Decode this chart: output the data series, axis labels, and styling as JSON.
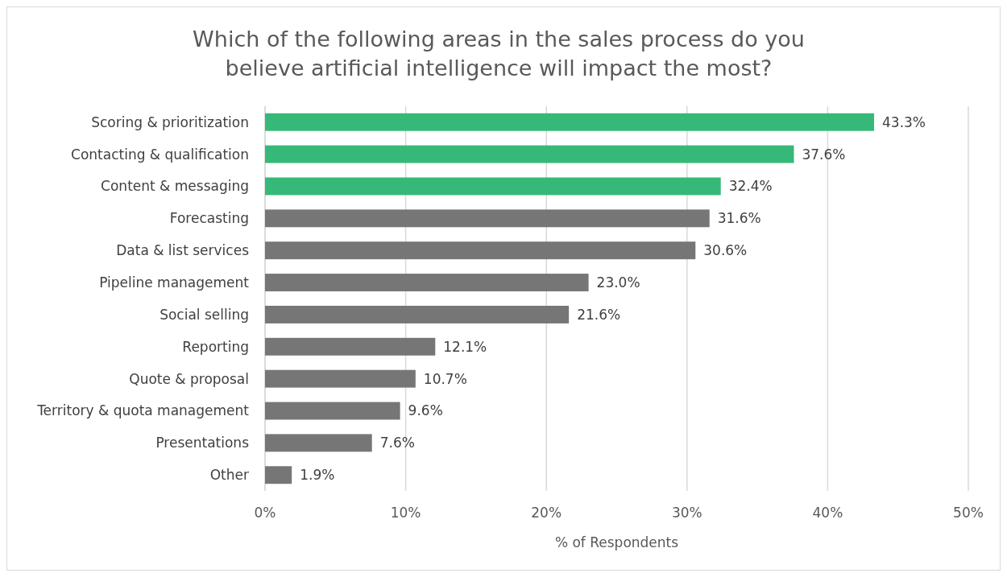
{
  "chart_data": {
    "type": "bar",
    "orientation": "horizontal",
    "title": "Which of the following areas in the sales process do you believe artificial intelligence will impact the most?",
    "xlabel": "% of Respondents",
    "categories": [
      "Scoring & prioritization",
      "Contacting & qualification",
      "Content & messaging",
      "Forecasting",
      "Data & list services",
      "Pipeline management",
      "Social selling",
      "Reporting",
      "Quote & proposal",
      "Territory & quota management",
      "Presentations",
      "Other"
    ],
    "values": [
      43.3,
      37.6,
      32.4,
      31.6,
      30.6,
      23.0,
      21.6,
      12.1,
      10.7,
      9.6,
      7.6,
      1.9
    ],
    "colors": [
      "#36b978",
      "#36b978",
      "#36b978",
      "#767676",
      "#767676",
      "#767676",
      "#767676",
      "#767676",
      "#767676",
      "#767676",
      "#767676",
      "#767676"
    ],
    "value_labels": [
      "43.3%",
      "37.6%",
      "32.4%",
      "31.6%",
      "30.6%",
      "23.0%",
      "21.6%",
      "12.1%",
      "10.7%",
      "9.6%",
      "7.6%",
      "1.9%"
    ],
    "xlim": [
      0,
      50
    ],
    "xticks": [
      {
        "value": 0,
        "label": "0%"
      },
      {
        "value": 10,
        "label": "10%"
      },
      {
        "value": 20,
        "label": "20%"
      },
      {
        "value": 30,
        "label": "30%"
      },
      {
        "value": 40,
        "label": "40%"
      },
      {
        "value": 50,
        "label": "50%"
      }
    ],
    "grid": "x"
  }
}
